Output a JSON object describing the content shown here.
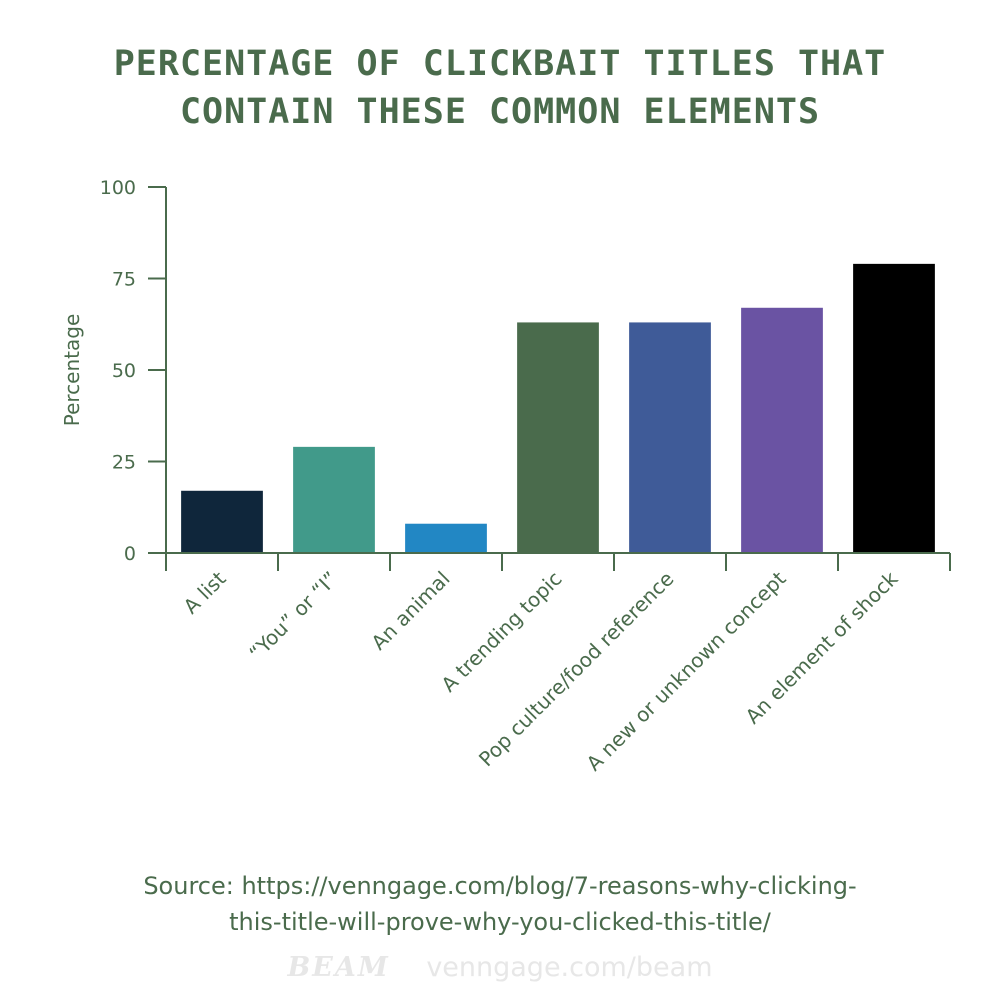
{
  "header": {
    "title_line1": "PERCENTAGE OF CLICKBAIT TITLES THAT",
    "title_line2": "CONTAIN THESE COMMON ELEMENTS"
  },
  "footer": {
    "source_line1": "Source: https://venngage.com/blog/7-reasons-why-clicking-",
    "source_line2": "this-title-will-prove-why-you-clicked-this-title/",
    "brand_logo": "BEAM",
    "brand_url": "venngage.com/beam"
  },
  "colors": {
    "text": "#4a6b4c",
    "axis": "#4a6b4c",
    "watermark": "#e7e7e7"
  },
  "chart_data": {
    "type": "bar",
    "title": "PERCENTAGE OF CLICKBAIT TITLES THAT CONTAIN THESE COMMON ELEMENTS",
    "xlabel": "",
    "ylabel": "Percentage",
    "ylim": [
      0,
      100
    ],
    "yticks": [
      0,
      25,
      50,
      75,
      100
    ],
    "grid": false,
    "legend": "none",
    "categories": [
      "A list",
      "“You” or “I”",
      "An animal",
      "A trending topic",
      "Pop culture/food reference",
      "A new or unknown concept",
      "An element of shock"
    ],
    "values": [
      17,
      29,
      8,
      63,
      63,
      67,
      79
    ],
    "bar_colors": [
      "#0f263b",
      "#419a8a",
      "#2287c4",
      "#4a6b4c",
      "#3f5b98",
      "#6a53a3",
      "#000000"
    ]
  }
}
